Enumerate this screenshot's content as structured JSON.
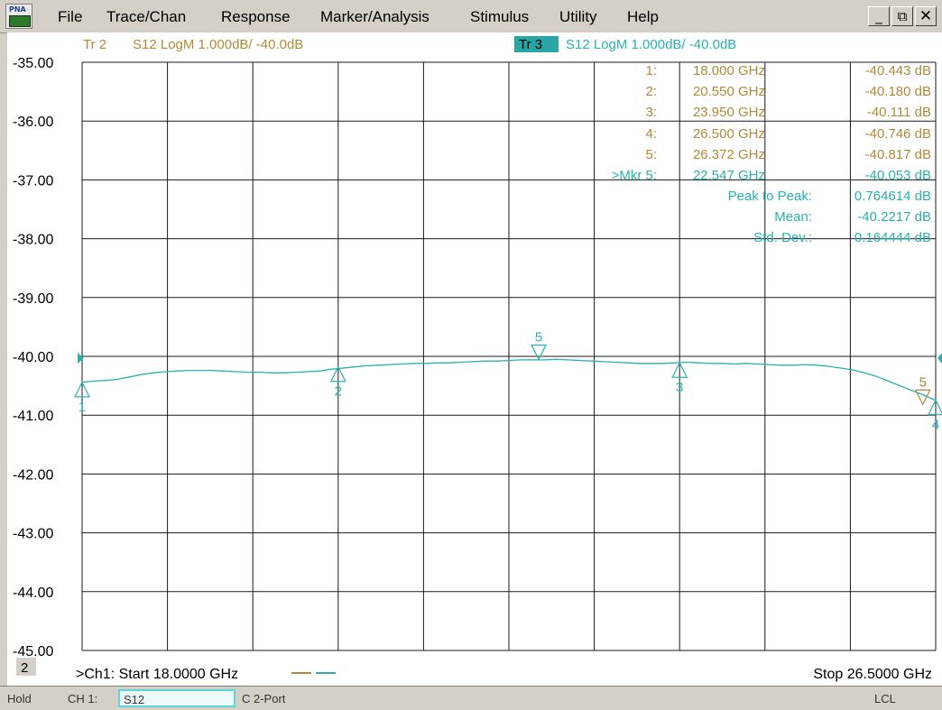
{
  "menu": {
    "logo_label": "PNA",
    "items": [
      "File",
      "Trace/Chan",
      "Response",
      "Marker/Analysis",
      "Stimulus",
      "Utility",
      "Help"
    ],
    "window_buttons": [
      "_",
      "⧉",
      "✕"
    ]
  },
  "colors": {
    "tr2": "#b08a3a",
    "tr3": "#2ab0b0",
    "grid": "#1a1a1a",
    "plot_bg": "#ffffff",
    "tr3_badge_bg": "#2aa5a5"
  },
  "traces": {
    "tr2": {
      "tag": "Tr 2",
      "label": "S12 LogM 1.000dB/  -40.0dB"
    },
    "tr3": {
      "tag": "Tr 3",
      "label": "S12 LogM 1.000dB/  -40.0dB"
    }
  },
  "markers": {
    "tr2_rows": [
      {
        "name": "1:",
        "freq": "18.000 GHz",
        "value": "-40.443 dB"
      },
      {
        "name": "2:",
        "freq": "20.550 GHz",
        "value": "-40.180 dB"
      },
      {
        "name": "3:",
        "freq": "23.950 GHz",
        "value": "-40.111 dB"
      },
      {
        "name": "4:",
        "freq": "26.500 GHz",
        "value": "-40.746 dB"
      },
      {
        "name": "5:",
        "freq": "26.372 GHz",
        "value": "-40.817 dB"
      }
    ],
    "tr3_active": {
      "name": ">Mkr 5:",
      "freq": "22.547 GHz",
      "value": "-40.053 dB"
    },
    "stats": [
      {
        "label": "Peak to Peak:",
        "value": "0.764614 dB"
      },
      {
        "label": "Mean:",
        "value": "-40.2217 dB"
      },
      {
        "label": "Std. Dev.:",
        "value": "0.164444 dB"
      }
    ]
  },
  "axes": {
    "y_ticks": [
      "-35.00",
      "-36.00",
      "-37.00",
      "-38.00",
      "-39.00",
      "-40.00",
      "-41.00",
      "-42.00",
      "-43.00",
      "-44.00",
      "-45.00"
    ],
    "y_range_db": [
      -45,
      -35
    ],
    "x_range_ghz": [
      18.0,
      26.5
    ],
    "x_divisions": 10,
    "reference_db": -40
  },
  "channel": {
    "window_number": "2",
    "start_label": ">Ch1: Start  18.0000 GHz",
    "stop_label": "Stop  26.5000 GHz"
  },
  "trace_markers_plotted": [
    {
      "label": "1",
      "freq_ghz": 18.0,
      "db": -40.443,
      "trace": "tr3"
    },
    {
      "label": "2",
      "freq_ghz": 20.55,
      "db": -40.18,
      "trace": "tr3"
    },
    {
      "label": "5",
      "freq_ghz": 22.547,
      "db": -40.053,
      "trace": "tr3",
      "above": true
    },
    {
      "label": "3",
      "freq_ghz": 23.95,
      "db": -40.111,
      "trace": "tr3"
    },
    {
      "label": "5",
      "freq_ghz": 26.372,
      "db": -40.817,
      "trace": "tr2",
      "above": true
    },
    {
      "label": "4",
      "freq_ghz": 26.5,
      "db": -40.746,
      "trace": "tr3"
    }
  ],
  "trace_points_db": [
    -40.44,
    -40.42,
    -40.41,
    -40.39,
    -40.35,
    -40.31,
    -40.28,
    -40.26,
    -40.25,
    -40.24,
    -40.24,
    -40.24,
    -40.25,
    -40.26,
    -40.27,
    -40.27,
    -40.28,
    -40.28,
    -40.27,
    -40.26,
    -40.25,
    -40.22,
    -40.2,
    -40.18,
    -40.16,
    -40.15,
    -40.14,
    -40.13,
    -40.12,
    -40.12,
    -40.11,
    -40.11,
    -40.1,
    -40.09,
    -40.08,
    -40.08,
    -40.07,
    -40.06,
    -40.06,
    -40.06,
    -40.05,
    -40.06,
    -40.07,
    -40.08,
    -40.09,
    -40.1,
    -40.11,
    -40.12,
    -40.12,
    -40.12,
    -40.11,
    -40.1,
    -40.11,
    -40.12,
    -40.12,
    -40.13,
    -40.12,
    -40.13,
    -40.14,
    -40.15,
    -40.15,
    -40.14,
    -40.15,
    -40.17,
    -40.2,
    -40.23,
    -40.28,
    -40.34,
    -40.42,
    -40.5,
    -40.58,
    -40.66,
    -40.75
  ],
  "status": {
    "hold": "Hold",
    "channel": "CH 1:",
    "parameter": "S12",
    "port": "C  2-Port",
    "remote": "LCL"
  }
}
